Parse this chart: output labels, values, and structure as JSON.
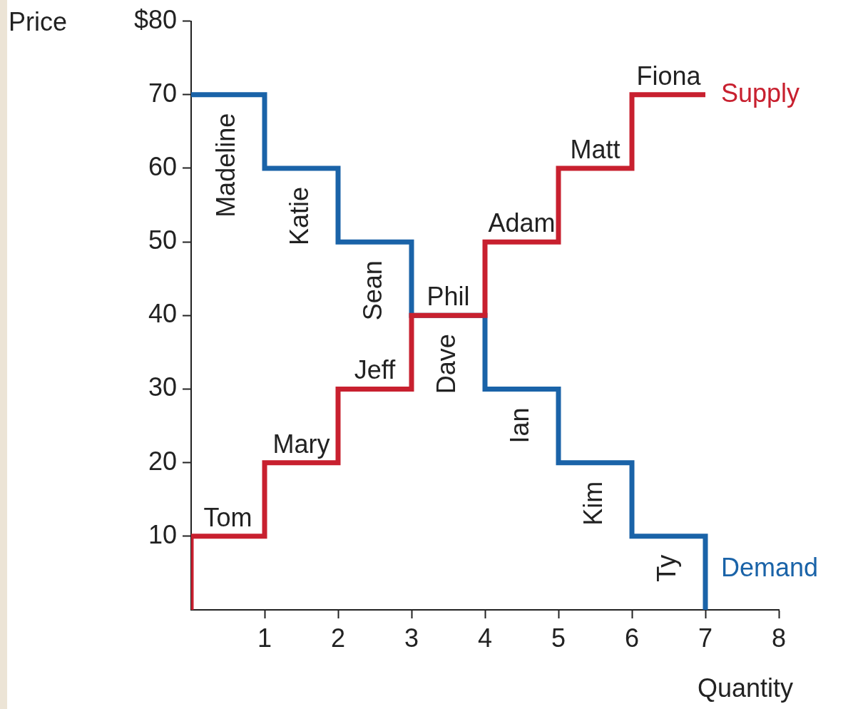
{
  "chart_data": {
    "type": "step",
    "xlabel": "Quantity",
    "ylabel": "Price",
    "xlim": [
      0,
      8
    ],
    "xticks": [
      1,
      2,
      3,
      4,
      5,
      6,
      7,
      8
    ],
    "ylim": [
      0,
      80
    ],
    "yticks": [
      10,
      20,
      30,
      40,
      50,
      60,
      70,
      {
        "value": 80,
        "label": "$80"
      }
    ],
    "grid": false,
    "legend": false,
    "marker": "none",
    "line_style": "solid",
    "series": [
      {
        "name": "Supply",
        "color": "#c8202f",
        "x": [
          0,
          0,
          1,
          2,
          3,
          4,
          5,
          6,
          7
        ],
        "values": [
          0,
          10,
          20,
          30,
          40,
          50,
          60,
          70,
          70
        ]
      },
      {
        "name": "Demand",
        "color": "#1a63a8",
        "x": [
          0,
          1,
          2,
          3,
          4,
          5,
          6,
          7
        ],
        "values": [
          70,
          60,
          50,
          40,
          30,
          20,
          10,
          0
        ]
      }
    ],
    "annotations": [
      "Tom",
      "Mary",
      "Jeff",
      "Phil",
      "Adam",
      "Matt",
      "Fiona",
      "Madeline",
      "Katie",
      "Sean",
      "Dave",
      "Ian",
      "Kim",
      "Ty"
    ]
  }
}
